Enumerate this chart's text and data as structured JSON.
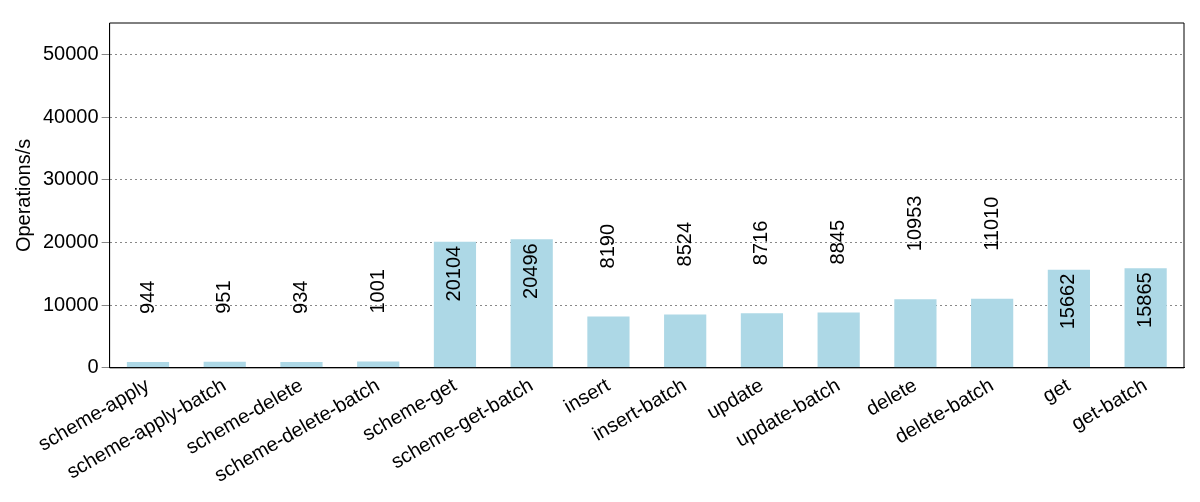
{
  "chart_data": {
    "type": "bar",
    "ylabel": "Operations/s",
    "categories": [
      "scheme-apply",
      "scheme-apply-batch",
      "scheme-delete",
      "scheme-delete-batch",
      "scheme-get",
      "scheme-get-batch",
      "insert",
      "insert-batch",
      "update",
      "update-batch",
      "delete",
      "delete-batch",
      "get",
      "get-batch"
    ],
    "values": [
      944,
      951,
      934,
      1001,
      20104,
      20496,
      8190,
      8524,
      8716,
      8845,
      10953,
      11010,
      15662,
      15865
    ],
    "color": "#add8e6",
    "ylim": [
      0,
      55000
    ],
    "yticks": [
      0,
      10000,
      20000,
      30000,
      40000,
      50000
    ],
    "grid": "y",
    "data_labels": true,
    "legend": false
  }
}
